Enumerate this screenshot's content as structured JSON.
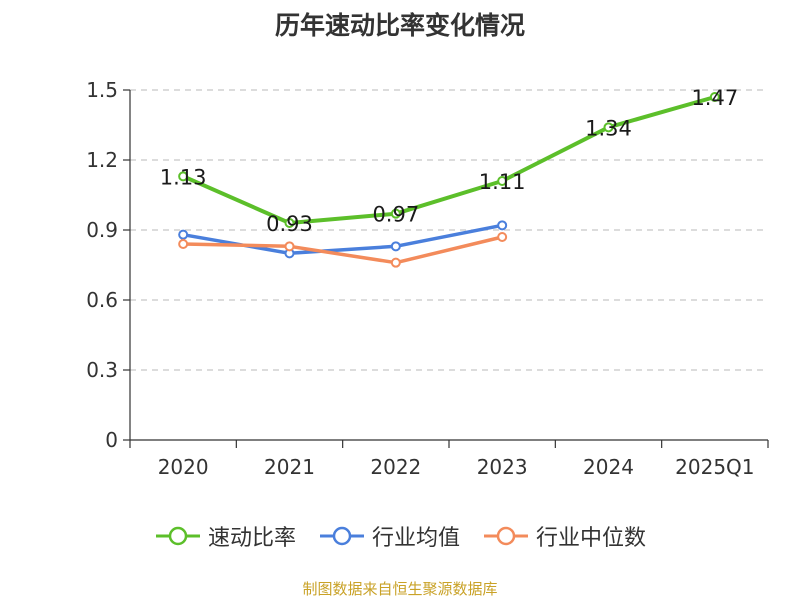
{
  "chart_data": {
    "type": "line",
    "title": "历年速动比率变化情况",
    "categories": [
      "2020",
      "2021",
      "2022",
      "2023",
      "2024",
      "2025Q1"
    ],
    "series": [
      {
        "name": "速动比率",
        "color": "#5cbf2a",
        "values": [
          1.13,
          0.93,
          0.97,
          1.11,
          1.34,
          1.47
        ],
        "show_labels": true
      },
      {
        "name": "行业均值",
        "color": "#4a7fdc",
        "values": [
          0.88,
          0.8,
          0.83,
          0.92,
          null,
          null
        ],
        "show_labels": false
      },
      {
        "name": "行业中位数",
        "color": "#f38b5b",
        "values": [
          0.84,
          0.83,
          0.76,
          0.87,
          null,
          null
        ],
        "show_labels": false
      }
    ],
    "y_ticks": [
      "0",
      "0.3",
      "0.6",
      "0.9",
      "1.2",
      "1.5"
    ],
    "ylim": [
      0,
      1.5
    ],
    "grid": true,
    "legend_position": "bottom"
  },
  "source": "制图数据来自恒生聚源数据库"
}
